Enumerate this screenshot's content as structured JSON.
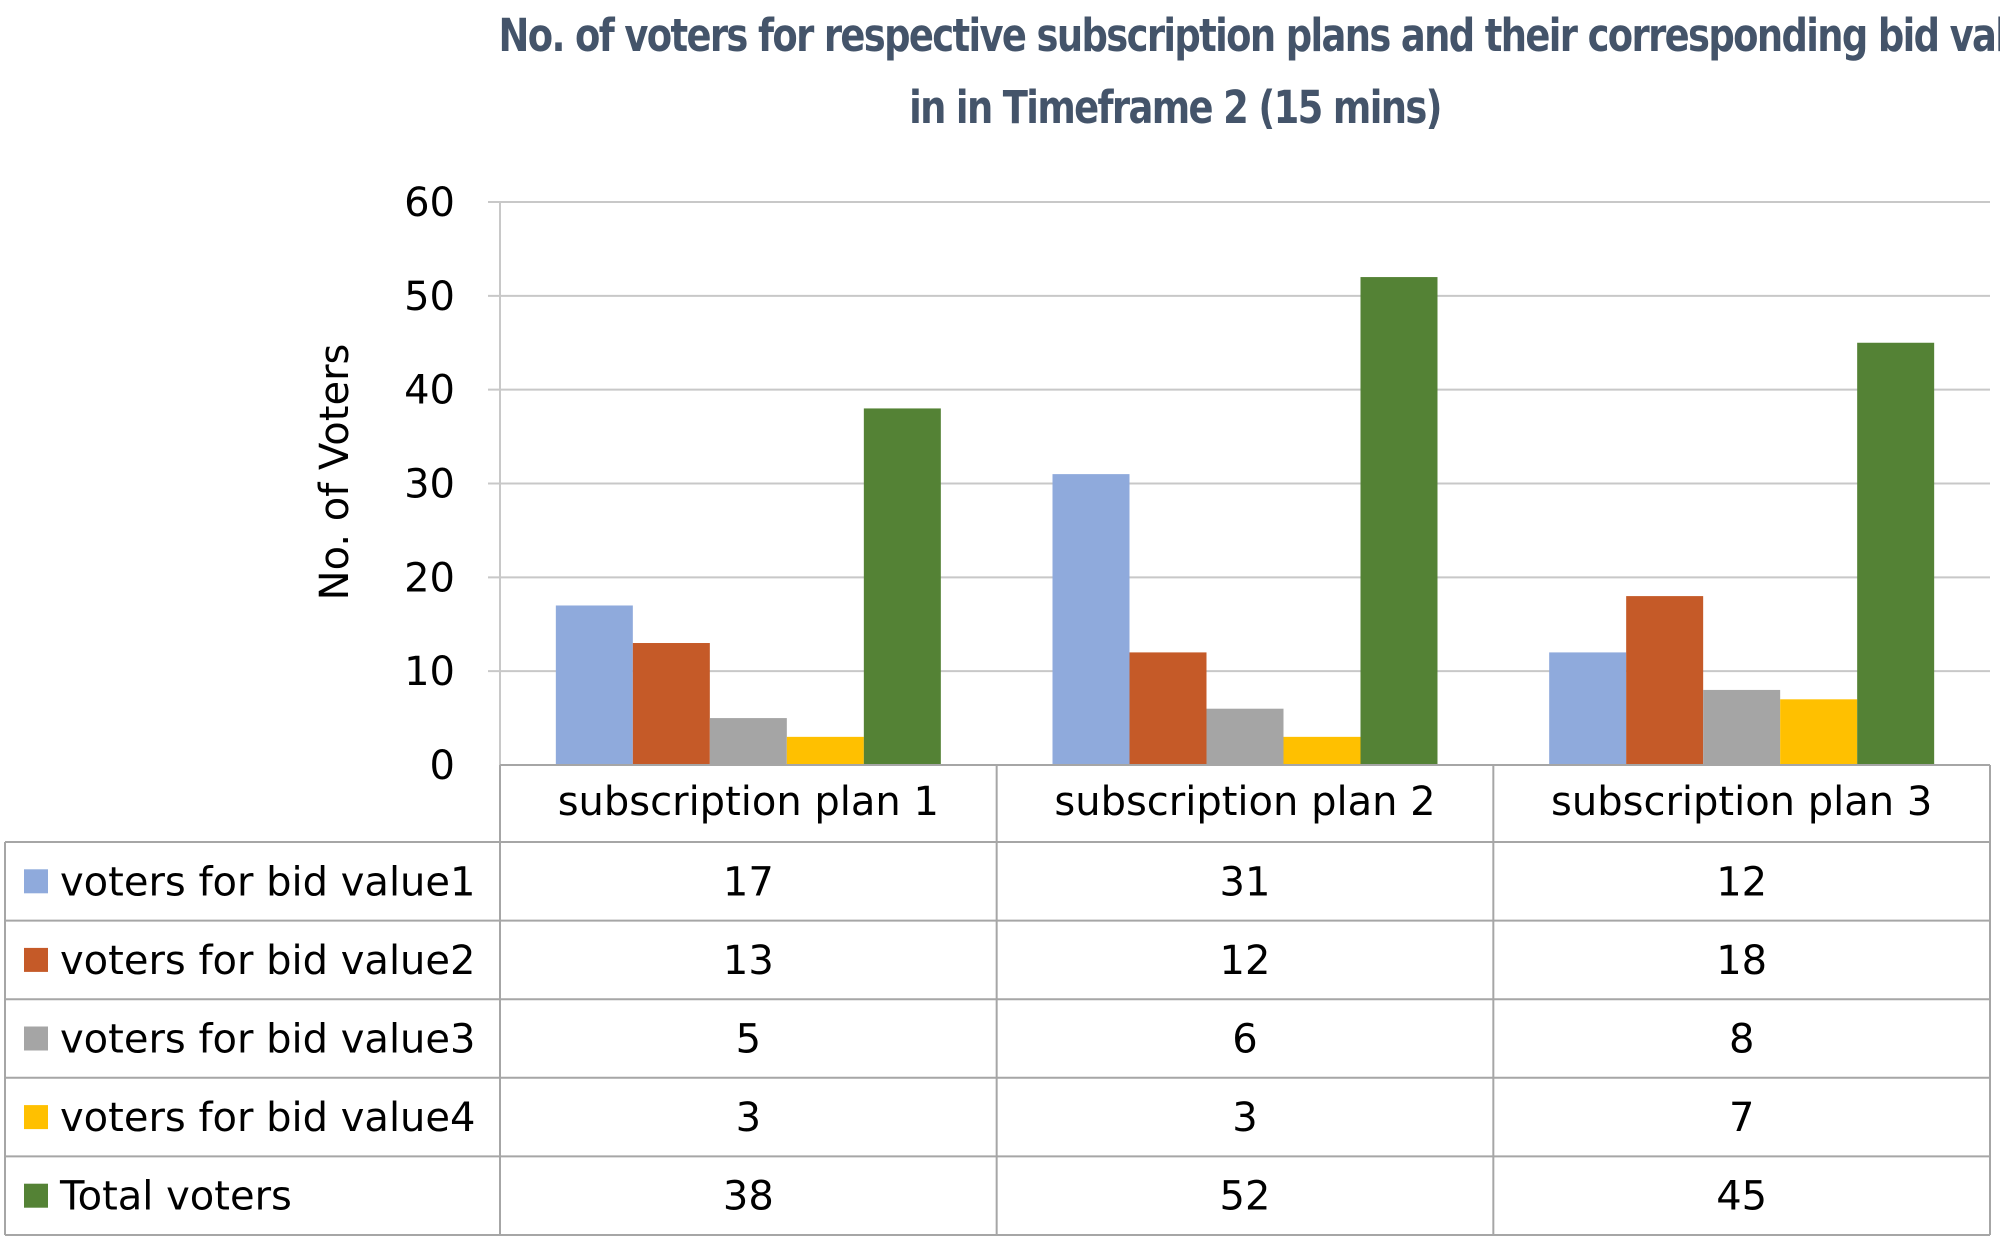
{
  "chart_data": {
    "type": "bar",
    "title": "No. of voters for respective subscription plans and their corresponding bid values",
    "subtitle": "in  in Timeframe 2 (15 mins)",
    "xlabel": "",
    "ylabel": "No. of Voters",
    "ylim": [
      0,
      60
    ],
    "yticks": [
      "0",
      "10",
      "20",
      "30",
      "40",
      "50",
      "60"
    ],
    "grid": true,
    "legend": "data-table",
    "categories": [
      "subscription plan 1",
      "subscription plan 2",
      "subscription plan 3"
    ],
    "series": [
      {
        "name": "voters for bid value1",
        "color": "#8faadc",
        "values": [
          17,
          31,
          12
        ]
      },
      {
        "name": "voters for bid value2",
        "color": "#c55a28",
        "values": [
          13,
          12,
          18
        ]
      },
      {
        "name": "voters for bid value3",
        "color": "#a5a5a5",
        "values": [
          5,
          6,
          8
        ]
      },
      {
        "name": "voters for bid value4",
        "color": "#ffc000",
        "values": [
          3,
          3,
          7
        ]
      },
      {
        "name": "Total voters",
        "color": "#548235",
        "values": [
          38,
          52,
          45
        ]
      }
    ]
  }
}
